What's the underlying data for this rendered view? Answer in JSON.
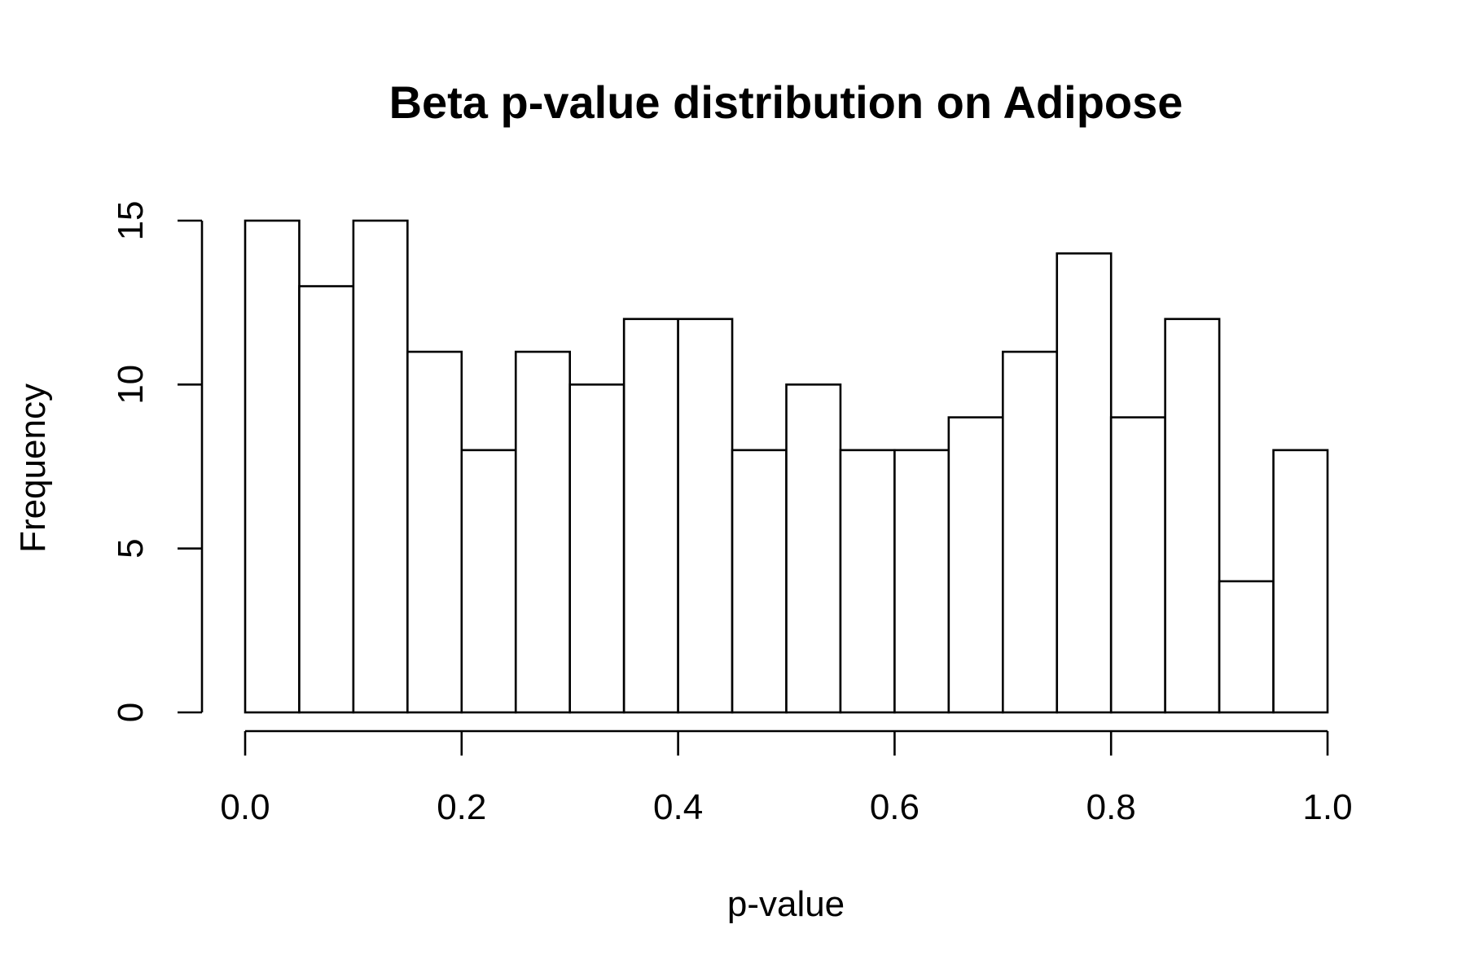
{
  "chart_data": {
    "type": "bar",
    "title": "Beta p-value distribution on Adipose",
    "xlabel": "p-value",
    "ylabel": "Frequency",
    "bin_edges": [
      0.0,
      0.05,
      0.1,
      0.15,
      0.2,
      0.25,
      0.3,
      0.35,
      0.4,
      0.45,
      0.5,
      0.55,
      0.6,
      0.65,
      0.7,
      0.75,
      0.8,
      0.85,
      0.9,
      0.95,
      1.0
    ],
    "values": [
      15,
      13,
      15,
      11,
      8,
      11,
      10,
      12,
      12,
      8,
      10,
      8,
      8,
      9,
      11,
      14,
      9,
      12,
      4,
      8
    ],
    "xlim": [
      0.0,
      1.0
    ],
    "ylim": [
      0,
      15
    ],
    "x_ticks": [
      0.0,
      0.2,
      0.4,
      0.6,
      0.8,
      1.0
    ],
    "x_tick_labels": [
      "0.0",
      "0.2",
      "0.4",
      "0.6",
      "0.8",
      "1.0"
    ],
    "y_ticks": [
      0,
      5,
      10,
      15
    ],
    "y_tick_labels": [
      "0",
      "5",
      "10",
      "15"
    ],
    "grid": false,
    "legend": "none",
    "colors": {
      "bar_fill": "#ffffff",
      "bar_stroke": "#000000"
    }
  }
}
